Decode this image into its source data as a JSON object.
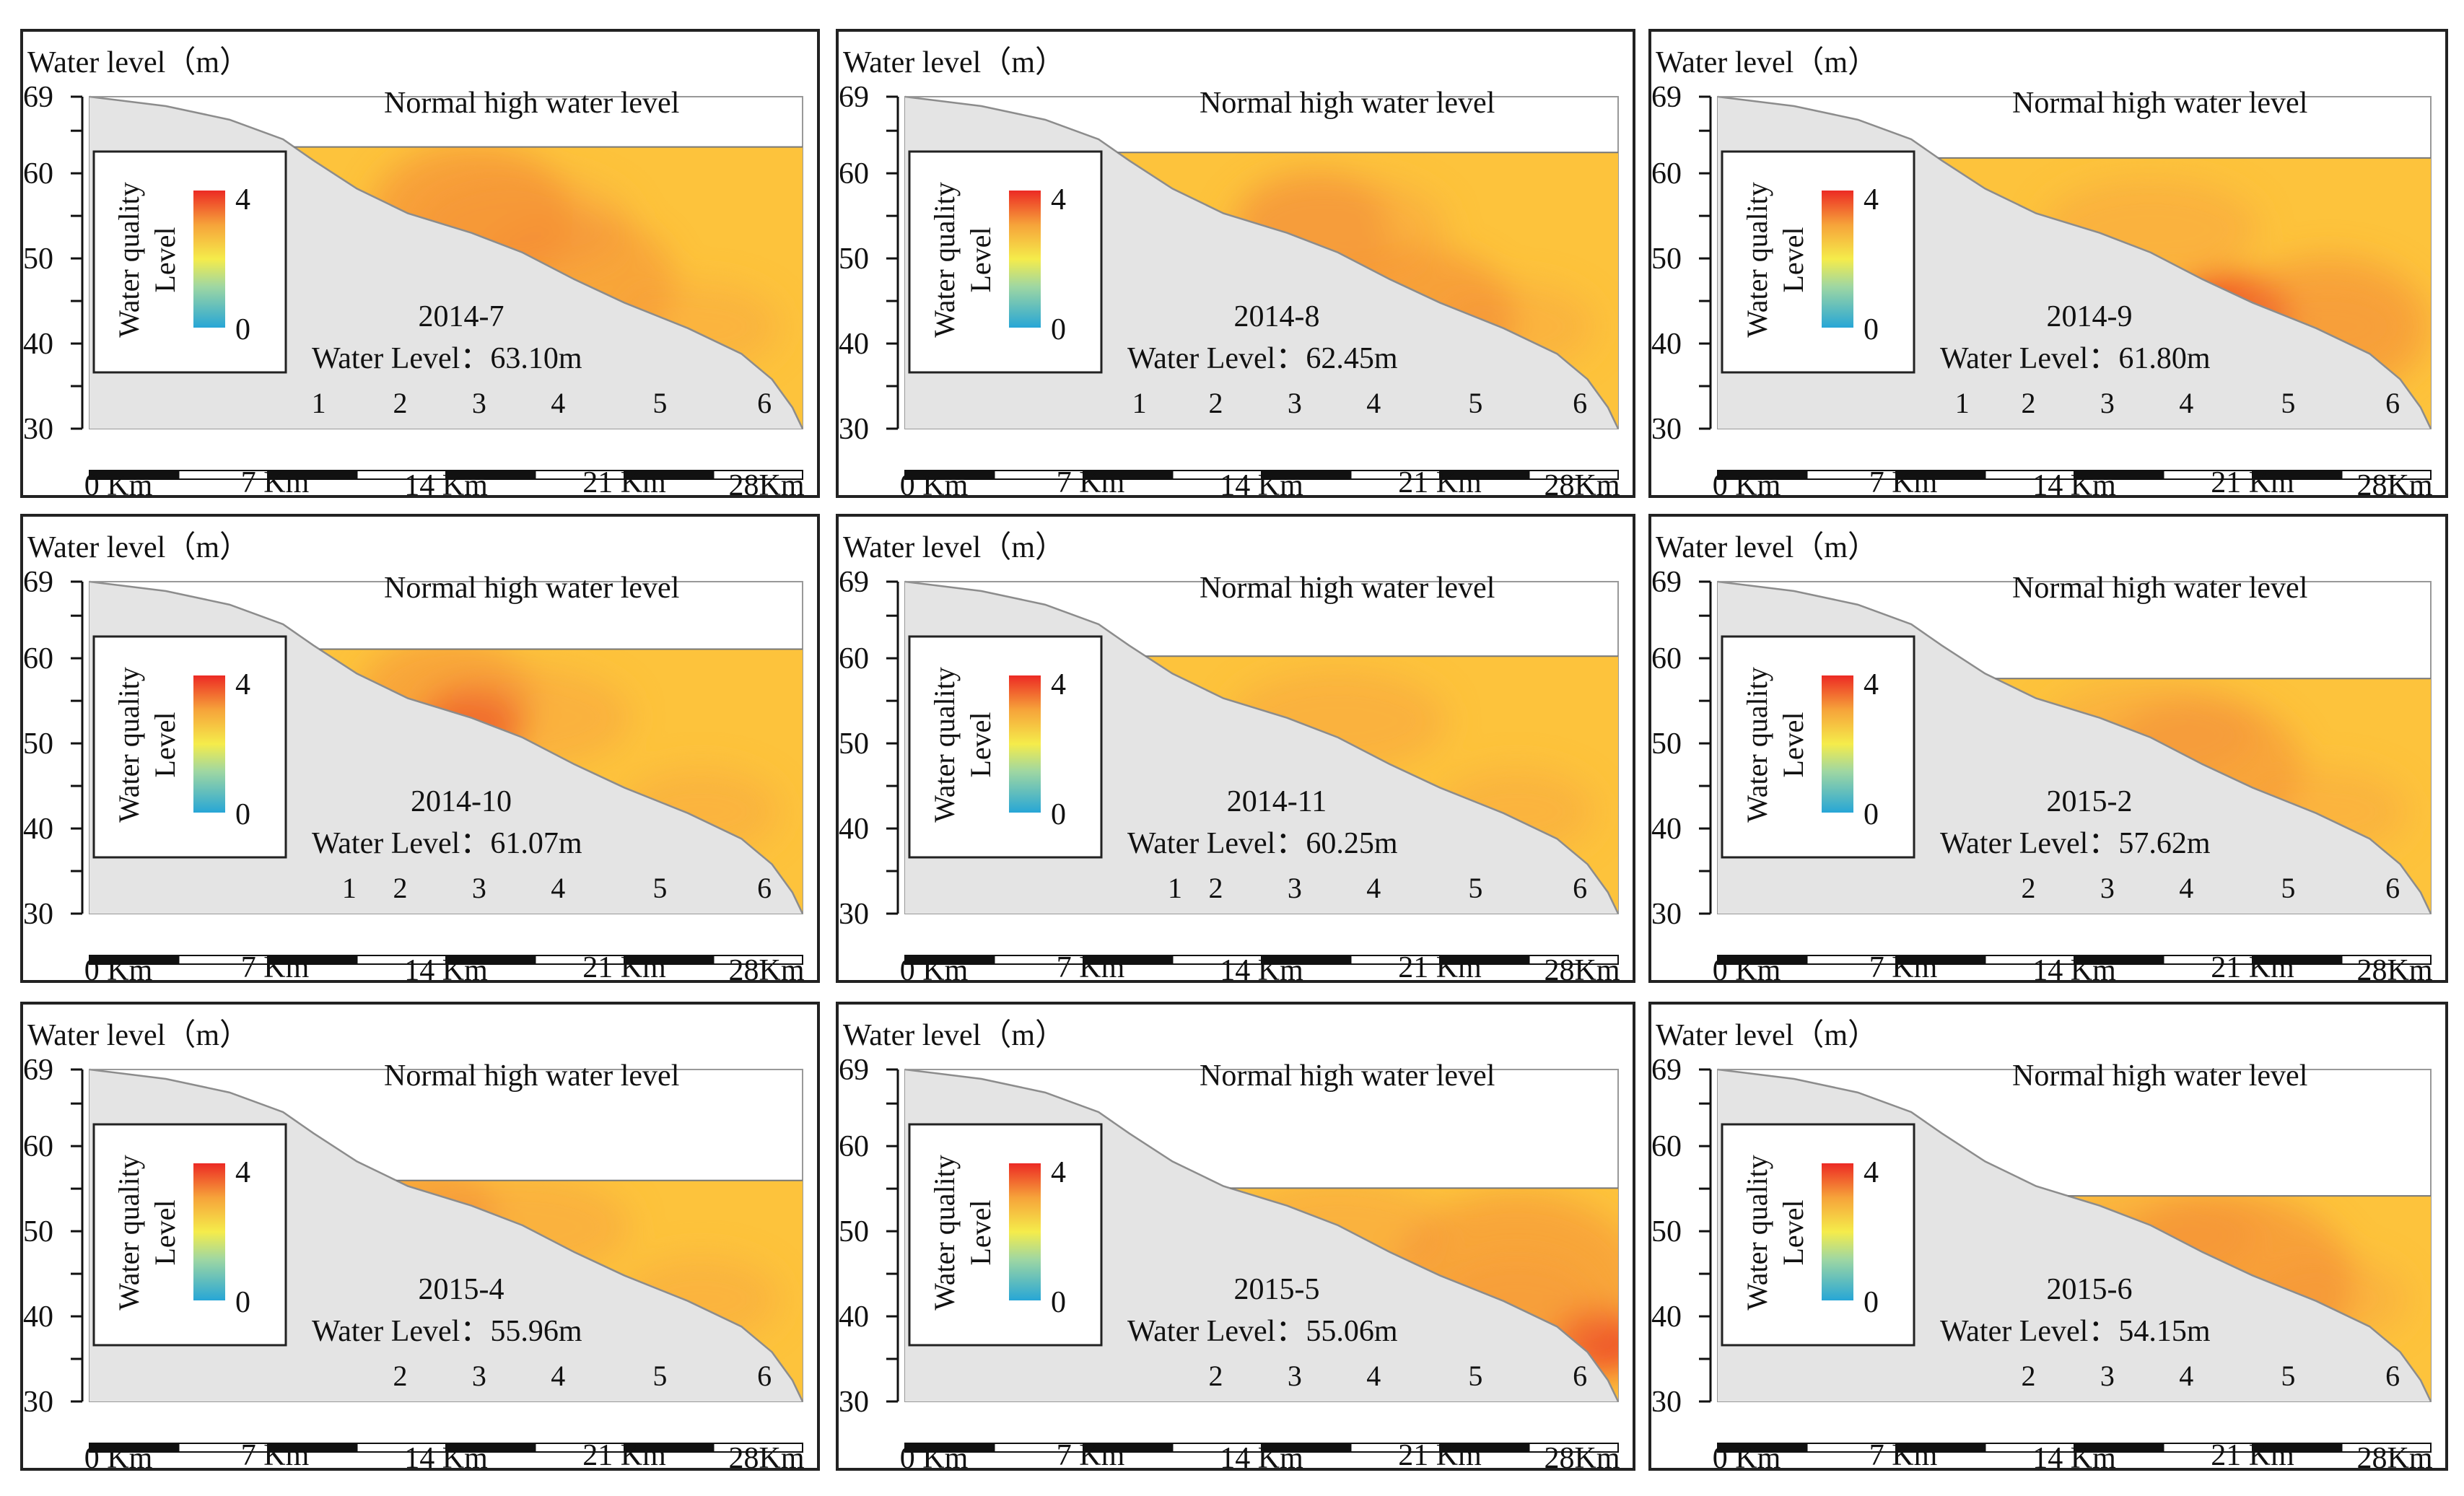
{
  "figure": {
    "y_axis_label": "Water level（m）",
    "normal_level_label": "Normal high water level",
    "legend_title_line1": "Water quality",
    "legend_title_line2": "Level",
    "legend_max": "4",
    "legend_min": "0",
    "water_level_prefix": "Water Level：",
    "colors": {
      "terrain": "#e4e4e4",
      "terrain_edge": "#8c8c8c",
      "water_base": "#fdc33c",
      "water_mid": "#f9ae3e",
      "water_hot": "#f38a35",
      "hotspot": "#ee4a25",
      "axis": "#111111"
    }
  },
  "chart_data": [
    {
      "type": "area",
      "title": "2014-7",
      "water_level_text": "63.10m",
      "water_level": 63.1,
      "ylabel": "Water level（m）",
      "ylim": [
        30,
        69
      ],
      "y_ticks": [
        "69",
        "60",
        "50",
        "40",
        "30"
      ],
      "xlabel": "",
      "xlim": [
        0,
        28
      ],
      "x_ticks": [
        "0 Km",
        "7 Km",
        "14 Km",
        "21 Km",
        "28Km"
      ],
      "reference_line": {
        "label": "Normal high water level",
        "value": 69
      },
      "stations": [
        {
          "id": "1",
          "km": 9.0
        },
        {
          "id": "2",
          "km": 12.2
        },
        {
          "id": "3",
          "km": 15.3
        },
        {
          "id": "4",
          "km": 18.4
        },
        {
          "id": "5",
          "km": 22.4
        },
        {
          "id": "6",
          "km": 26.5
        }
      ],
      "hotspots": [
        {
          "km": 15,
          "level": 55,
          "r": 4,
          "intensity": 0.6
        },
        {
          "km": 19,
          "level": 47,
          "r": 4,
          "intensity": 0.5
        }
      ]
    },
    {
      "type": "area",
      "title": "2014-8",
      "water_level_text": "62.45m",
      "water_level": 62.45,
      "ylabel": "Water level（m）",
      "ylim": [
        30,
        69
      ],
      "y_ticks": [
        "69",
        "60",
        "50",
        "40",
        "30"
      ],
      "xlabel": "",
      "xlim": [
        0,
        28
      ],
      "x_ticks": [
        "0 Km",
        "7 Km",
        "14 Km",
        "21 Km",
        "28Km"
      ],
      "reference_line": {
        "label": "Normal high water level",
        "value": 69
      },
      "stations": [
        {
          "id": "1",
          "km": 9.2
        },
        {
          "id": "2",
          "km": 12.2
        },
        {
          "id": "3",
          "km": 15.3
        },
        {
          "id": "4",
          "km": 18.4
        },
        {
          "id": "5",
          "km": 22.4
        },
        {
          "id": "6",
          "km": 26.5
        }
      ],
      "hotspots": [
        {
          "km": 20,
          "level": 43,
          "r": 4,
          "intensity": 0.6
        },
        {
          "km": 16,
          "level": 54,
          "r": 3,
          "intensity": 0.5
        }
      ]
    },
    {
      "type": "area",
      "title": "2014-9",
      "water_level_text": "61.80m",
      "water_level": 61.8,
      "ylabel": "Water level（m）",
      "ylim": [
        30,
        69
      ],
      "y_ticks": [
        "69",
        "60",
        "50",
        "40",
        "30"
      ],
      "xlabel": "",
      "xlim": [
        0,
        28
      ],
      "x_ticks": [
        "0 Km",
        "7 Km",
        "14 Km",
        "21 Km",
        "28Km"
      ],
      "reference_line": {
        "label": "Normal high water level",
        "value": 69
      },
      "stations": [
        {
          "id": "1",
          "km": 9.6
        },
        {
          "id": "2",
          "km": 12.2
        },
        {
          "id": "3",
          "km": 15.3
        },
        {
          "id": "4",
          "km": 18.4
        },
        {
          "id": "5",
          "km": 22.4
        },
        {
          "id": "6",
          "km": 26.5
        }
      ],
      "hotspots": [
        {
          "km": 20,
          "level": 43,
          "r": 2.5,
          "intensity": 0.9
        },
        {
          "km": 24,
          "level": 42,
          "r": 4,
          "intensity": 0.5
        }
      ]
    },
    {
      "type": "area",
      "title": "2014-10",
      "water_level_text": "61.07m",
      "water_level": 61.07,
      "ylabel": "Water level（m）",
      "ylim": [
        30,
        69
      ],
      "y_ticks": [
        "69",
        "60",
        "50",
        "40",
        "30"
      ],
      "xlabel": "",
      "xlim": [
        0,
        28
      ],
      "x_ticks": [
        "0 Km",
        "7 Km",
        "14 Km",
        "21 Km",
        "28Km"
      ],
      "reference_line": {
        "label": "Normal high water level",
        "value": 69
      },
      "stations": [
        {
          "id": "1",
          "km": 10.2
        },
        {
          "id": "2",
          "km": 12.2
        },
        {
          "id": "3",
          "km": 15.3
        },
        {
          "id": "4",
          "km": 18.4
        },
        {
          "id": "5",
          "km": 22.4
        },
        {
          "id": "6",
          "km": 26.5
        }
      ],
      "hotspots": [
        {
          "km": 15,
          "level": 52,
          "r": 2,
          "intensity": 0.9
        },
        {
          "km": 14,
          "level": 55,
          "r": 3.5,
          "intensity": 0.5
        }
      ]
    },
    {
      "type": "area",
      "title": "2014-11",
      "water_level_text": "60.25m",
      "water_level": 60.25,
      "ylabel": "Water level（m）",
      "ylim": [
        30,
        69
      ],
      "y_ticks": [
        "69",
        "60",
        "50",
        "40",
        "30"
      ],
      "xlabel": "",
      "xlim": [
        0,
        28
      ],
      "x_ticks": [
        "0 Km",
        "7 Km",
        "14 Km",
        "21 Km",
        "28Km"
      ],
      "reference_line": {
        "label": "Normal high water level",
        "value": 69
      },
      "stations": [
        {
          "id": "1",
          "km": 10.6
        },
        {
          "id": "2",
          "km": 12.2
        },
        {
          "id": "3",
          "km": 15.3
        },
        {
          "id": "4",
          "km": 18.4
        },
        {
          "id": "5",
          "km": 22.4
        },
        {
          "id": "6",
          "km": 26.5
        }
      ],
      "hotspots": []
    },
    {
      "type": "area",
      "title": "2015-2",
      "water_level_text": "57.62m",
      "water_level": 57.62,
      "ylabel": "Water level（m）",
      "ylim": [
        30,
        69
      ],
      "y_ticks": [
        "69",
        "60",
        "50",
        "40",
        "30"
      ],
      "xlabel": "",
      "xlim": [
        0,
        28
      ],
      "x_ticks": [
        "0 Km",
        "7 Km",
        "14 Km",
        "21 Km",
        "28Km"
      ],
      "reference_line": {
        "label": "Normal high water level",
        "value": 69
      },
      "stations": [
        {
          "id": "2",
          "km": 12.2
        },
        {
          "id": "3",
          "km": 15.3
        },
        {
          "id": "4",
          "km": 18.4
        },
        {
          "id": "5",
          "km": 22.4
        },
        {
          "id": "6",
          "km": 26.5
        }
      ],
      "hotspots": [
        {
          "km": 19,
          "level": 47,
          "r": 4,
          "intensity": 0.5
        }
      ]
    },
    {
      "type": "area",
      "title": "2015-4",
      "water_level_text": "55.96m",
      "water_level": 55.96,
      "ylabel": "Water level（m）",
      "ylim": [
        30,
        69
      ],
      "y_ticks": [
        "69",
        "60",
        "50",
        "40",
        "30"
      ],
      "xlabel": "",
      "xlim": [
        0,
        28
      ],
      "x_ticks": [
        "0 Km",
        "7 Km",
        "14 Km",
        "21 Km",
        "28Km"
      ],
      "reference_line": {
        "label": "Normal high water level",
        "value": 69
      },
      "stations": [
        {
          "id": "2",
          "km": 12.2
        },
        {
          "id": "3",
          "km": 15.3
        },
        {
          "id": "4",
          "km": 18.4
        },
        {
          "id": "5",
          "km": 22.4
        },
        {
          "id": "6",
          "km": 26.5
        }
      ],
      "hotspots": [
        {
          "km": 13,
          "level": 52,
          "r": 3,
          "intensity": 0.5
        }
      ]
    },
    {
      "type": "area",
      "title": "2015-5",
      "water_level_text": "55.06m",
      "water_level": 55.06,
      "ylabel": "Water level（m）",
      "ylim": [
        30,
        69
      ],
      "y_ticks": [
        "69",
        "60",
        "50",
        "40",
        "30"
      ],
      "xlabel": "",
      "xlim": [
        0,
        28
      ],
      "x_ticks": [
        "0 Km",
        "7 Km",
        "14 Km",
        "21 Km",
        "28Km"
      ],
      "reference_line": {
        "label": "Normal high water level",
        "value": 69
      },
      "stations": [
        {
          "id": "2",
          "km": 12.2
        },
        {
          "id": "3",
          "km": 15.3
        },
        {
          "id": "4",
          "km": 18.4
        },
        {
          "id": "5",
          "km": 22.4
        },
        {
          "id": "6",
          "km": 26.5
        }
      ],
      "hotspots": [
        {
          "km": 27.3,
          "level": 37,
          "r": 1.8,
          "intensity": 1.0
        },
        {
          "km": 24,
          "level": 44,
          "r": 5,
          "intensity": 0.5
        }
      ]
    },
    {
      "type": "area",
      "title": "2015-6",
      "water_level_text": "54.15m",
      "water_level": 54.15,
      "ylabel": "Water level（m）",
      "ylim": [
        30,
        69
      ],
      "y_ticks": [
        "69",
        "60",
        "50",
        "40",
        "30"
      ],
      "xlabel": "",
      "xlim": [
        0,
        28
      ],
      "x_ticks": [
        "0 Km",
        "7 Km",
        "14 Km",
        "21 Km",
        "28Km"
      ],
      "reference_line": {
        "label": "Normal high water level",
        "value": 69
      },
      "stations": [
        {
          "id": "2",
          "km": 12.2
        },
        {
          "id": "3",
          "km": 15.3
        },
        {
          "id": "4",
          "km": 18.4
        },
        {
          "id": "5",
          "km": 22.4
        },
        {
          "id": "6",
          "km": 26.5
        }
      ],
      "hotspots": [
        {
          "km": 20,
          "level": 44,
          "r": 5,
          "intensity": 0.6
        }
      ]
    }
  ]
}
